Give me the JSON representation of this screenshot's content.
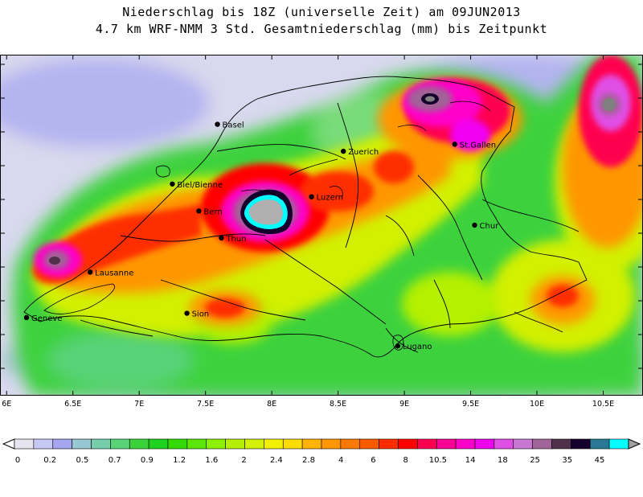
{
  "title": {
    "line1": "Niederschlag bis 18Z (universelle Zeit) am 09JUN2013",
    "line2": "4.7 km WRF-NMM 3 Std. Gesamtniederschlag (mm) bis Zeitpunkt"
  },
  "axis": {
    "x_ticks": [
      "6E",
      "6.5E",
      "7E",
      "7.5E",
      "8E",
      "8.5E",
      "9E",
      "9.5E",
      "10E",
      "10.5E"
    ],
    "x_values": [
      6.0,
      6.5,
      7.0,
      7.5,
      8.0,
      8.5,
      9.0,
      9.5,
      10.0,
      10.5
    ],
    "lon_range": [
      5.95,
      10.8
    ],
    "lat_range": [
      45.65,
      48.05
    ]
  },
  "cities": [
    {
      "name": "Basel",
      "lon": 7.59,
      "lat": 47.56
    },
    {
      "name": "Zuerich",
      "lon": 8.54,
      "lat": 47.37
    },
    {
      "name": "St.Gallen",
      "lon": 9.38,
      "lat": 47.42
    },
    {
      "name": "Biel/Bienne",
      "lon": 7.25,
      "lat": 47.14
    },
    {
      "name": "Luzern",
      "lon": 8.3,
      "lat": 47.05
    },
    {
      "name": "Bern",
      "lon": 7.45,
      "lat": 46.95
    },
    {
      "name": "Thun",
      "lon": 7.62,
      "lat": 46.76
    },
    {
      "name": "Chur",
      "lon": 9.53,
      "lat": 46.85
    },
    {
      "name": "Lausanne",
      "lon": 6.63,
      "lat": 46.52
    },
    {
      "name": "Geneve",
      "lon": 6.15,
      "lat": 46.2
    },
    {
      "name": "Sion",
      "lon": 7.36,
      "lat": 46.23
    },
    {
      "name": "Lugano",
      "lon": 8.95,
      "lat": 46.0
    }
  ],
  "legend": {
    "labels": [
      "0",
      "0.2",
      "0.5",
      "0.7",
      "0.9",
      "1.2",
      "1.6",
      "2",
      "2.4",
      "2.8",
      "4",
      "6",
      "8",
      "10.5",
      "14",
      "18",
      "25",
      "35",
      "45"
    ],
    "colors": [
      "#e6e6f0",
      "#c8c8f5",
      "#a5a5f0",
      "#96c8d2",
      "#78cdaa",
      "#5ad278",
      "#3cd23c",
      "#1ed21e",
      "#32dc00",
      "#5ae600",
      "#8cf000",
      "#b4f000",
      "#d2f000",
      "#f0f000",
      "#ffdc00",
      "#ffb400",
      "#ff9600",
      "#ff7800",
      "#ff5a00",
      "#ff2d00",
      "#ff0000",
      "#ff0050",
      "#ff0096",
      "#ff00c8",
      "#f000f0",
      "#e050e6",
      "#c878d2",
      "#a06496",
      "#50304a",
      "#14002a",
      "#287896",
      "#00ffff"
    ]
  }
}
